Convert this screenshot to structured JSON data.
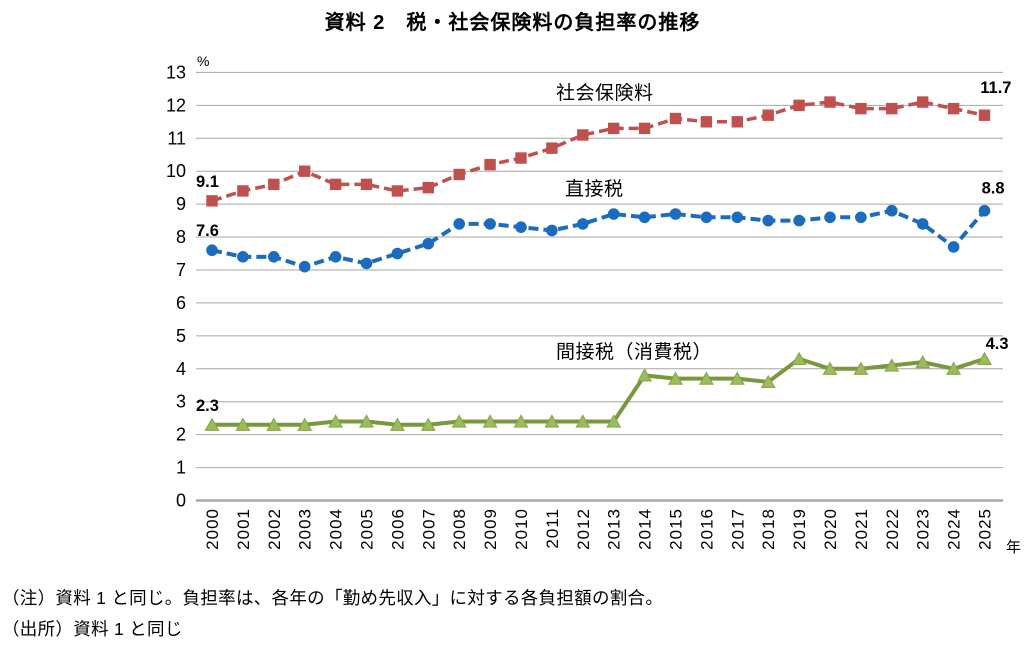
{
  "page": {
    "title": "資料 2　税・社会保険料の負担率の推移",
    "note_line1": "（注）資料 1 と同じ。負担率は、各年の「勤め先収入」に対する各負担額の割合。",
    "note_line2": "（出所）資料 1 と同じ"
  },
  "chart_data": {
    "type": "line",
    "title": "資料 2　税・社会保険料の負担率の推移",
    "y_unit_label": "%",
    "x_axis_suffix": "年",
    "ylim": [
      0,
      13
    ],
    "ytick_step": 1,
    "grid": true,
    "legend_position": "inline-labels",
    "categories": [
      "2000",
      "2001",
      "2002",
      "2003",
      "2004",
      "2005",
      "2006",
      "2007",
      "2008",
      "2009",
      "2010",
      "2011",
      "2012",
      "2013",
      "2014",
      "2015",
      "2016",
      "2017",
      "2018",
      "2019",
      "2020",
      "2021",
      "2022",
      "2023",
      "2024",
      "2025"
    ],
    "series": [
      {
        "name": "社会保険料",
        "marker": "square",
        "line_style": "dashed",
        "line_color": "#c0504d",
        "marker_color": "#c0504d",
        "marker_edge_color": "#c0504d",
        "values": [
          9.1,
          9.4,
          9.6,
          10.0,
          9.6,
          9.6,
          9.4,
          9.5,
          9.9,
          10.2,
          10.4,
          10.7,
          11.1,
          11.3,
          11.3,
          11.6,
          11.5,
          11.5,
          11.7,
          12.0,
          12.1,
          11.9,
          11.9,
          12.1,
          11.9,
          11.7
        ],
        "start_label": "9.1",
        "end_label": "11.7"
      },
      {
        "name": "直接税",
        "marker": "circle",
        "line_style": "dashed",
        "line_color": "#1b6cbf",
        "marker_color": "#1b6cbf",
        "marker_edge_color": "#1b6cbf",
        "values": [
          7.6,
          7.4,
          7.4,
          7.1,
          7.4,
          7.2,
          7.5,
          7.8,
          8.4,
          8.4,
          8.3,
          8.2,
          8.4,
          8.7,
          8.6,
          8.7,
          8.6,
          8.6,
          8.5,
          8.5,
          8.6,
          8.6,
          8.8,
          8.4,
          7.7,
          8.8
        ],
        "start_label": "7.6",
        "end_label": "8.8"
      },
      {
        "name": "間接税（消費税）",
        "marker": "triangle",
        "line_style": "solid",
        "line_color": "#79983b",
        "marker_color": "#9cba5e",
        "marker_edge_color": "#85a449",
        "values": [
          2.3,
          2.3,
          2.3,
          2.3,
          2.4,
          2.4,
          2.3,
          2.3,
          2.4,
          2.4,
          2.4,
          2.4,
          2.4,
          2.4,
          3.8,
          3.7,
          3.7,
          3.7,
          3.6,
          4.3,
          4.0,
          4.0,
          4.1,
          4.2,
          4.0,
          4.3
        ],
        "start_label": "2.3",
        "end_label": "4.3"
      }
    ]
  }
}
